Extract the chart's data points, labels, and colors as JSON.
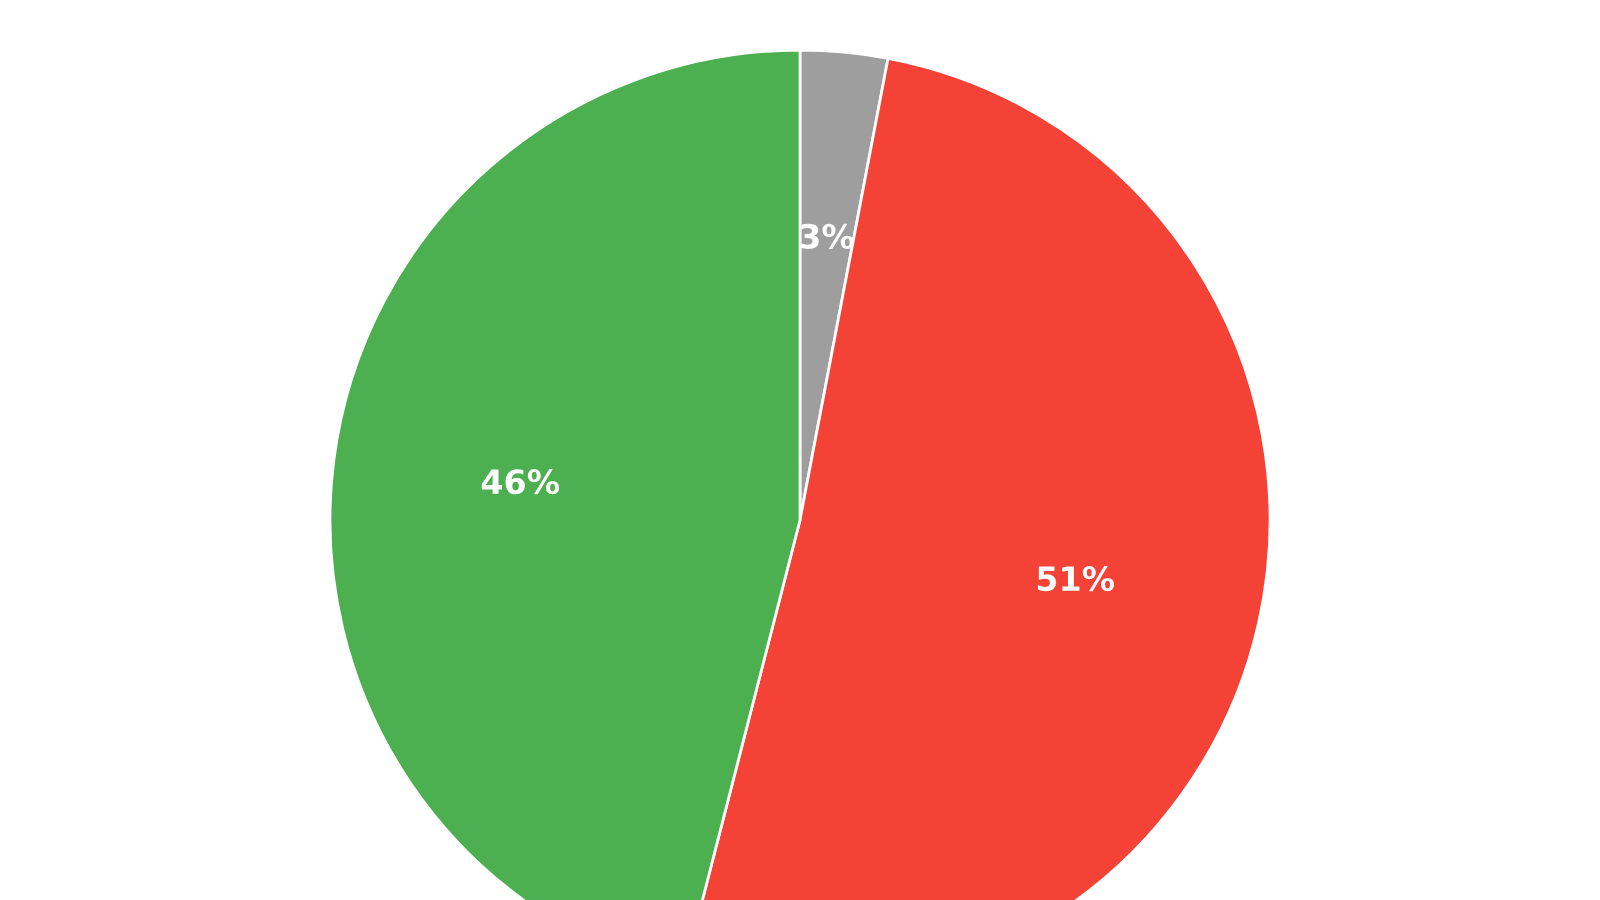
{
  "chart_data": {
    "type": "pie",
    "categories": [
      null,
      null,
      null
    ],
    "values": [
      3,
      51,
      46
    ],
    "colors": [
      "#9e9e9e",
      "#f44336",
      "#4caf50"
    ],
    "value_labels": [
      "3%",
      "51%",
      "46%"
    ]
  }
}
